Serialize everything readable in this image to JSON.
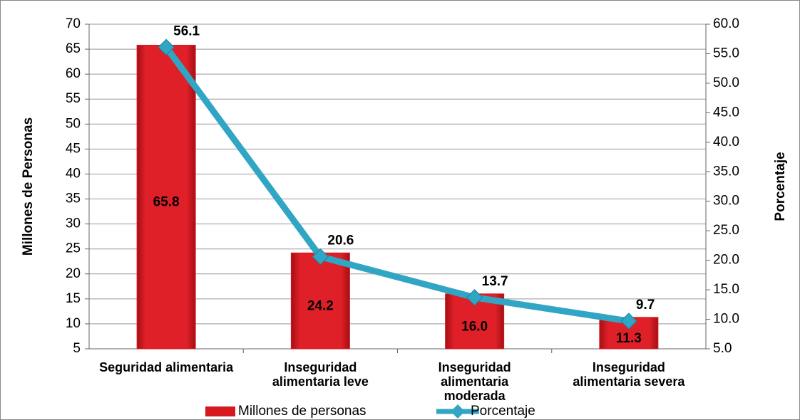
{
  "chart_data": {
    "type": "bar_line",
    "categories": [
      "Seguridad alimentaria",
      "Inseguridad alimentaria leve",
      "Inseguridad alimentaria moderada",
      "Inseguridad alimentaria severa"
    ],
    "series": [
      {
        "name": "Millones de personas",
        "color": "#d7191f",
        "values": [
          65.8,
          24.2,
          16.0,
          11.3
        ],
        "value_labels": [
          "65.8",
          "24.2",
          "16.0",
          "11.3"
        ]
      },
      {
        "name": "Porcentaje",
        "color": "#31a6c4",
        "axis": "y2",
        "values": [
          56.1,
          20.6,
          13.7,
          9.7
        ]
      }
    ],
    "ylabel": "Millones de Personas",
    "y2label": "Porcentaje",
    "ylim": [
      5,
      70
    ],
    "yticks": [
      5,
      10,
      15,
      20,
      25,
      30,
      35,
      40,
      45,
      50,
      55,
      60,
      65,
      70
    ],
    "y2lim": [
      5,
      60
    ],
    "y2ticks": [
      {
        "value": 5,
        "label": "5.0"
      },
      {
        "value": 10,
        "label": "10.0"
      },
      {
        "value": 15,
        "label": "15.0"
      },
      {
        "value": 20,
        "label": "20.0"
      },
      {
        "value": 25,
        "label": "25.0"
      },
      {
        "value": 30,
        "label": "30.0"
      },
      {
        "value": 35,
        "label": "35.0"
      },
      {
        "value": 40,
        "label": "40.0"
      },
      {
        "value": 45,
        "label": "45.0"
      },
      {
        "value": 50,
        "label": "50.0"
      },
      {
        "value": 55,
        "label": "55.0"
      },
      {
        "value": 60,
        "label": "60.0"
      }
    ],
    "grid": true,
    "legend": "bottom"
  }
}
